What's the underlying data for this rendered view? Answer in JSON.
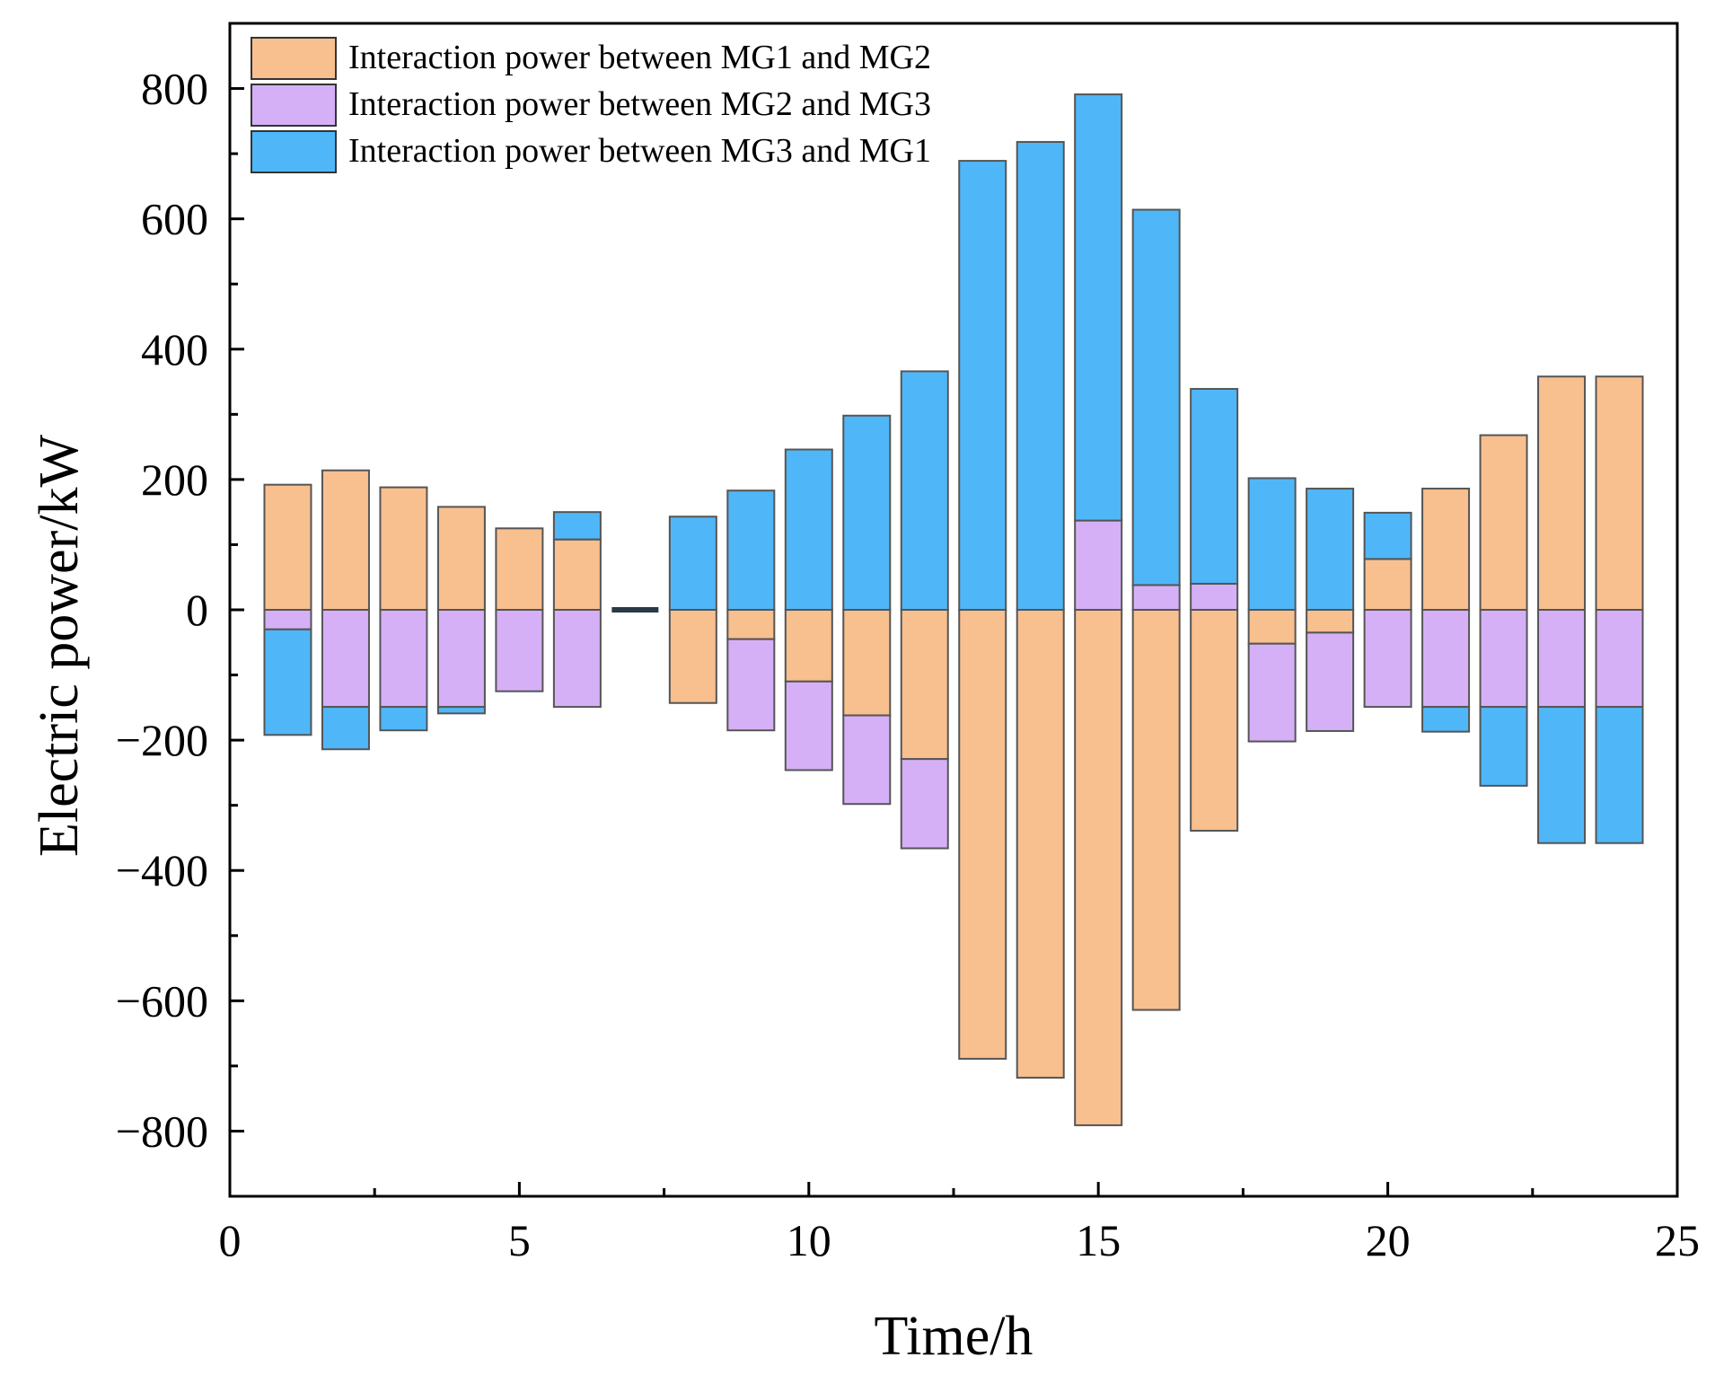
{
  "chart_data": {
    "type": "bar",
    "stacking": "diverging",
    "xlabel": "Time/h",
    "ylabel": "Electric power/kW",
    "xlim": [
      0,
      25
    ],
    "ylim": [
      -900,
      900
    ],
    "xticks": [
      0,
      5,
      10,
      15,
      20,
      25
    ],
    "yticks": [
      -800,
      -600,
      -400,
      -200,
      0,
      200,
      400,
      600,
      800
    ],
    "ytick_labels": [
      "−800",
      "−600",
      "−400",
      "−200",
      "0",
      "200",
      "400",
      "600",
      "800"
    ],
    "grid": false,
    "legend_position": "top-left",
    "x": [
      1,
      2,
      3,
      4,
      5,
      6,
      7,
      8,
      9,
      10,
      11,
      12,
      13,
      14,
      15,
      16,
      17,
      18,
      19,
      20,
      21,
      22,
      23,
      24
    ],
    "series": [
      {
        "name": "Interaction power between MG1 and MG2",
        "color": "#f8bf8f",
        "values": [
          192,
          214,
          188,
          158,
          125,
          108,
          0,
          -143,
          -45,
          -110,
          -162,
          -229,
          -689,
          -718,
          -791,
          -614,
          -339,
          -52,
          -35,
          78,
          186,
          268,
          358,
          358
        ]
      },
      {
        "name": "Interaction power between MG2 and MG3",
        "color": "#d6b0f7",
        "values": [
          -30,
          -149,
          -149,
          -149,
          -125,
          -149,
          0,
          0,
          -140,
          -136,
          -136,
          -137,
          0,
          0,
          137,
          38,
          40,
          -150,
          -151,
          -149,
          -149,
          -149,
          -149,
          -149
        ]
      },
      {
        "name": "Interaction power between MG3 and MG1",
        "color": "#4fb7f8",
        "values": [
          -162,
          -65,
          -36,
          -10,
          0,
          42,
          0,
          143,
          183,
          246,
          298,
          366,
          689,
          718,
          654,
          576,
          299,
          202,
          186,
          71,
          -38,
          -121,
          -209,
          -209
        ]
      }
    ]
  }
}
